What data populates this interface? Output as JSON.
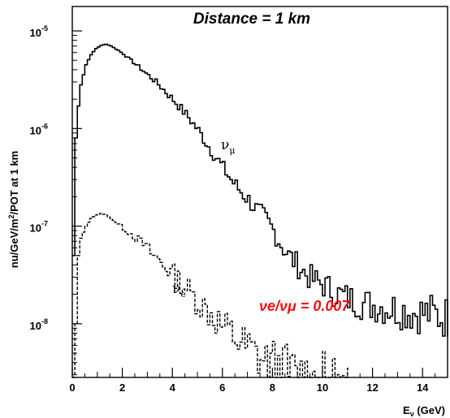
{
  "chart_data": {
    "type": "line",
    "title": "Distance = 1 km",
    "xlabel": "Eν (GeV)",
    "ylabel": "nu/GeV/m²/POT at 1 km",
    "xlim": [
      0,
      15
    ],
    "ylim_log10": [
      -8.55,
      -4.75
    ],
    "y_scale": "log",
    "x_ticks": [
      0,
      2,
      4,
      6,
      8,
      10,
      12,
      14
    ],
    "y_ticks": [
      {
        "base": "10",
        "exp": "-5",
        "value": 1e-05
      },
      {
        "base": "10",
        "exp": "-6",
        "value": 1e-06
      },
      {
        "base": "10",
        "exp": "-7",
        "value": 1e-07
      },
      {
        "base": "10",
        "exp": "-8",
        "value": 1e-08
      }
    ],
    "series": [
      {
        "label": "νμ",
        "label_base": "ν",
        "label_sub": "μ",
        "style": "solid",
        "color": "#000000",
        "x": [
          0.0,
          0.1,
          0.2,
          0.3,
          0.5,
          0.7,
          0.9,
          1.1,
          1.3,
          1.5,
          1.8,
          2.0,
          2.3,
          2.6,
          3.0,
          3.3,
          3.6,
          4.0,
          4.3,
          4.6,
          5.0,
          5.3,
          5.6,
          6.0,
          6.3,
          6.6,
          7.0,
          7.3,
          7.6,
          8.0,
          8.3,
          8.6,
          9.0,
          9.3,
          9.6,
          10.0,
          10.3,
          10.6,
          11.0,
          11.3,
          11.6,
          12.0,
          12.3,
          12.6,
          13.0,
          13.3,
          13.6,
          14.0,
          14.3,
          14.6,
          15.0
        ],
        "y": [
          5e-08,
          8e-07,
          1.7e-06,
          2.8e-06,
          4.5e-06,
          5.7e-06,
          6.6e-06,
          7.1e-06,
          7.3e-06,
          7e-06,
          6.3e-06,
          5.8e-06,
          5e-06,
          4.3e-06,
          3.5e-06,
          3e-06,
          2.5e-06,
          1.95e-06,
          1.6e-06,
          1.3e-06,
          9.5e-07,
          7.2e-07,
          5.5e-07,
          3.9e-07,
          3e-07,
          2.4e-07,
          1.85e-07,
          1.5e-07,
          1.25e-07,
          9e-08,
          6.5e-08,
          5e-08,
          3.9e-08,
          3.2e-08,
          2.8e-08,
          2.5e-08,
          2.2e-08,
          2e-08,
          1.8e-08,
          1.7e-08,
          1.6e-08,
          1.55e-08,
          1.5e-08,
          1.45e-08,
          1.4e-08,
          1.35e-08,
          1.3e-08,
          1.28e-08,
          1.25e-08,
          1.2e-08,
          1.15e-08
        ]
      },
      {
        "label": "νe",
        "label_base": "ν",
        "label_sub": "e",
        "style": "dashed",
        "color": "#000000",
        "x": [
          0.0,
          0.1,
          0.2,
          0.3,
          0.5,
          0.7,
          0.9,
          1.1,
          1.3,
          1.6,
          2.0,
          2.4,
          2.8,
          3.2,
          3.6,
          4.0,
          4.4,
          4.8,
          5.2,
          5.6,
          6.0,
          6.4,
          6.8,
          7.2,
          7.6,
          8.0,
          8.4,
          8.8,
          9.2,
          9.6,
          10.0,
          10.5,
          11.0
        ],
        "y": [
          1.5e-09,
          1e-08,
          5e-08,
          7.5e-08,
          1e-07,
          1.2e-07,
          1.3e-07,
          1.35e-07,
          1.3e-07,
          1.15e-07,
          9.5e-08,
          8e-08,
          6.5e-08,
          5e-08,
          4e-08,
          3.2e-08,
          2.5e-08,
          1.9e-08,
          1.5e-08,
          1.2e-08,
          9e-09,
          7.5e-09,
          6e-09,
          5e-09,
          4.2e-09,
          3.7e-09,
          3.3e-09,
          3e-09,
          2.8e-09,
          2.5e-09,
          2.2e-09,
          2e-09,
          1.8e-09
        ]
      }
    ],
    "annotations": [
      {
        "text": "νe/νμ = 0.007",
        "color": "#ee1111"
      }
    ]
  }
}
